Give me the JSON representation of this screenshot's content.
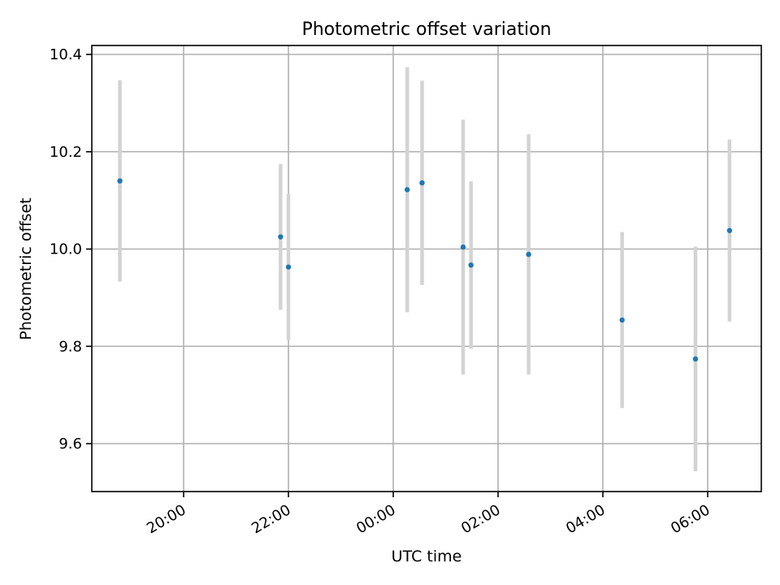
{
  "chart_data": {
    "type": "scatter",
    "title": "Photometric offset variation",
    "xlabel": "UTC time",
    "ylabel": "Photometric offset",
    "x_axis": {
      "kind": "time",
      "ticks": [
        "20:00",
        "22:00",
        "00:00",
        "02:00",
        "04:00",
        "06:00"
      ]
    },
    "y_axis": {
      "ylim": [
        9.5,
        10.42
      ],
      "ticks": [
        "9.6",
        "9.8",
        "10.0",
        "10.2",
        "10.4"
      ]
    },
    "grid": true,
    "colors": {
      "point": "#1f77b4",
      "errorbar": "#d3d3d3"
    },
    "series": [
      {
        "points": [
          {
            "t": "18:47",
            "y": 10.14,
            "err": 0.207
          },
          {
            "t": "21:51",
            "y": 10.025,
            "err": 0.15
          },
          {
            "t": "22:00",
            "y": 9.963,
            "err": 0.15
          },
          {
            "t": "00:16",
            "y": 10.122,
            "err": 0.252
          },
          {
            "t": "00:33",
            "y": 10.136,
            "err": 0.21
          },
          {
            "t": "01:20",
            "y": 10.004,
            "err": 0.262
          },
          {
            "t": "01:29",
            "y": 9.967,
            "err": 0.172
          },
          {
            "t": "02:35",
            "y": 9.989,
            "err": 0.247
          },
          {
            "t": "04:22",
            "y": 9.854,
            "err": 0.181
          },
          {
            "t": "05:46",
            "y": 9.774,
            "err": 0.231
          },
          {
            "t": "06:25",
            "y": 10.038,
            "err": 0.187
          }
        ]
      }
    ]
  }
}
